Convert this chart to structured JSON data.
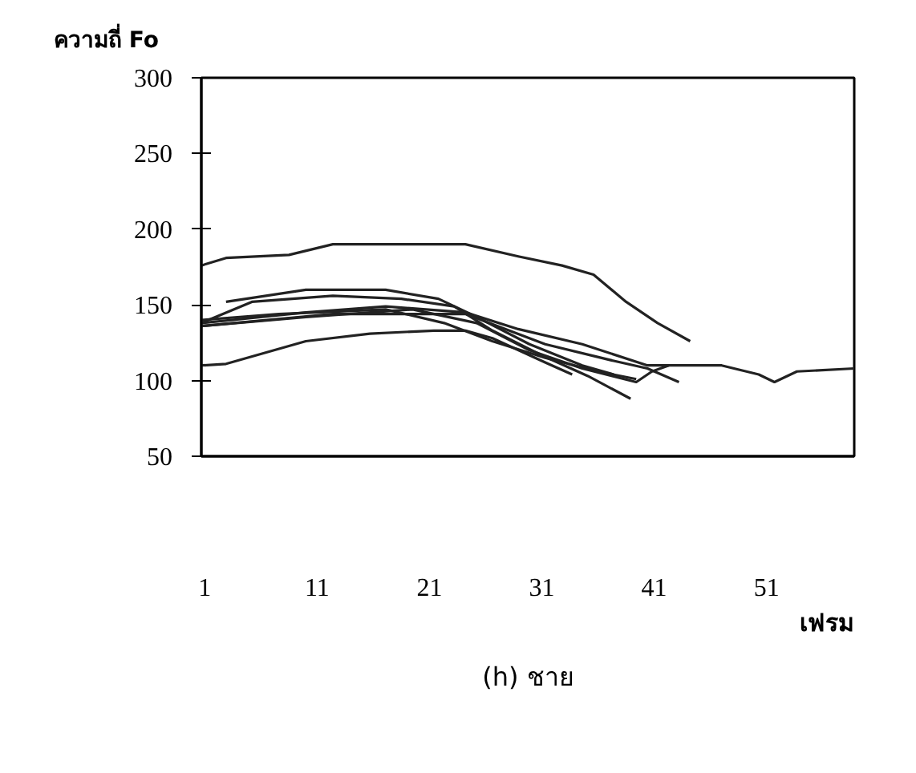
{
  "chart_data": {
    "type": "line",
    "xlabel": "เฟรม",
    "ylabel": "ความถี่ Fo",
    "annotations": [
      "(h) ชาย"
    ],
    "xlim": [
      0.7,
      58.8
    ],
    "xticks": [
      1,
      11,
      21,
      31,
      41,
      51
    ],
    "ylim": [
      50,
      300
    ],
    "yticks": [
      50,
      100,
      150,
      200,
      250,
      300
    ],
    "grid": false,
    "marker": "none",
    "line_style": "solid",
    "series": [
      {
        "color": "#222222",
        "x": [
          0.7,
          2.9,
          8.5,
          12.4,
          24.2,
          28.9,
          32.8,
          35.6,
          38.5,
          41.3,
          44.2
        ],
        "values": [
          176,
          181,
          183,
          190,
          190,
          182,
          176,
          170,
          152,
          138,
          126
        ]
      },
      {
        "color": "#222222",
        "x": [
          0.7,
          2.9,
          10,
          15.7,
          21.4,
          24.2,
          26.6,
          31.3,
          33.7
        ],
        "values": [
          110,
          111,
          126,
          131,
          133,
          133,
          128,
          112,
          104
        ]
      },
      {
        "color": "#222222",
        "x": [
          2.9,
          10,
          17.1,
          21.8,
          25.2,
          29.9,
          34.6,
          37.4
        ],
        "values": [
          152,
          160,
          160,
          154,
          142,
          124,
          110,
          104
        ]
      },
      {
        "color": "#222222",
        "x": [
          0.7,
          5.2,
          12.4,
          18.5,
          23.2,
          26.6,
          30.9,
          35.1,
          38.9
        ],
        "values": [
          138,
          152,
          156,
          154,
          149,
          133,
          117,
          103,
          88
        ]
      },
      {
        "color": "#222222",
        "x": [
          0.7,
          10,
          17.1,
          24.2,
          28.9,
          34.6,
          40.4,
          47,
          50.3,
          51.7,
          53.7,
          58.8
        ],
        "values": [
          138,
          145,
          149,
          145,
          134,
          124,
          110,
          110,
          104,
          99,
          106,
          108
        ]
      },
      {
        "color": "#222222",
        "x": [
          0.7,
          7.6,
          17.1,
          22.3,
          26.6,
          31.3,
          36,
          39.4
        ],
        "values": [
          140,
          144,
          147,
          138,
          126,
          115,
          106,
          101
        ]
      },
      {
        "color": "#222222",
        "x": [
          0.7,
          12.4,
          24.2,
          31.3,
          37.4,
          40.4,
          43.2
        ],
        "values": [
          136,
          144,
          144,
          124,
          113,
          108,
          99
        ]
      },
      {
        "color": "#222222",
        "x": [
          0.7,
          10,
          19.5,
          25.2,
          29.9,
          34.6,
          39.4,
          40.8,
          42.3
        ],
        "values": [
          136,
          142,
          147,
          138,
          120,
          108,
          99,
          106,
          110
        ]
      }
    ]
  }
}
